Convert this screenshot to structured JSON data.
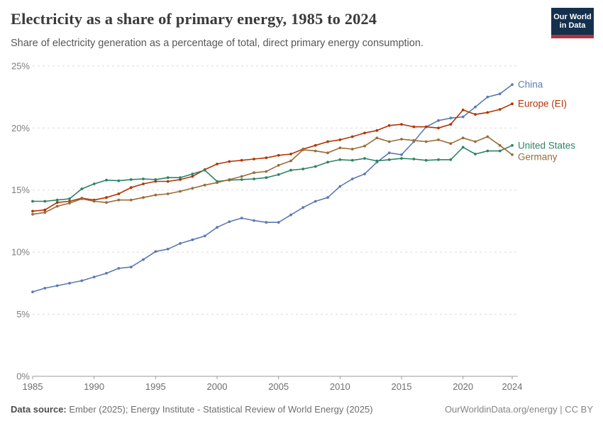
{
  "header": {
    "title": "Electricity as a share of primary energy, 1985 to 2024",
    "subtitle": "Share of electricity generation as a percentage of total, direct primary energy consumption.",
    "logo_line1": "Our World",
    "logo_line2": "in Data",
    "logo_bg_color": "#14304d",
    "logo_bar_color": "#b0333f"
  },
  "chart_data": {
    "type": "line",
    "title": "Electricity as a share of primary energy, 1985 to 2024",
    "xlabel": "",
    "ylabel": "",
    "ylim": [
      0,
      25
    ],
    "yticks": [
      0,
      5,
      10,
      15,
      20,
      25
    ],
    "ytick_suffix": "%",
    "xticks": [
      1985,
      1990,
      1995,
      2000,
      2005,
      2010,
      2015,
      2020,
      2024
    ],
    "grid": true,
    "legend_position": "end-of-line",
    "x": [
      1985,
      1986,
      1987,
      1988,
      1989,
      1990,
      1991,
      1992,
      1993,
      1994,
      1995,
      1996,
      1997,
      1998,
      1999,
      2000,
      2001,
      2002,
      2003,
      2004,
      2005,
      2006,
      2007,
      2008,
      2009,
      2010,
      2011,
      2012,
      2013,
      2014,
      2015,
      2016,
      2017,
      2018,
      2019,
      2020,
      2021,
      2022,
      2023,
      2024
    ],
    "series": [
      {
        "name": "China",
        "color": "#5b7bb4",
        "values": [
          6.8,
          7.1,
          7.3,
          7.5,
          7.7,
          8.0,
          8.3,
          8.7,
          8.8,
          9.4,
          10.05,
          10.25,
          10.7,
          11.0,
          11.3,
          12.0,
          12.45,
          12.75,
          12.55,
          12.4,
          12.4,
          13.0,
          13.6,
          14.1,
          14.4,
          15.3,
          15.9,
          16.3,
          17.25,
          18.0,
          17.85,
          18.9,
          20.1,
          20.6,
          20.8,
          20.9,
          21.7,
          22.5,
          22.75,
          23.5
        ]
      },
      {
        "name": "Europe (EI)",
        "color": "#b13507",
        "values": [
          13.3,
          13.4,
          14.0,
          14.1,
          14.35,
          14.2,
          14.4,
          14.7,
          15.2,
          15.5,
          15.7,
          15.7,
          15.85,
          16.1,
          16.65,
          17.1,
          17.3,
          17.4,
          17.5,
          17.6,
          17.8,
          17.9,
          18.3,
          18.6,
          18.9,
          19.05,
          19.3,
          19.6,
          19.8,
          20.2,
          20.3,
          20.1,
          20.1,
          20.0,
          20.3,
          21.45,
          21.1,
          21.25,
          21.5,
          21.95
        ]
      },
      {
        "name": "United States",
        "color": "#2c8465",
        "values": [
          14.1,
          14.1,
          14.2,
          14.3,
          15.1,
          15.5,
          15.8,
          15.75,
          15.85,
          15.9,
          15.85,
          16.0,
          16.0,
          16.3,
          16.6,
          15.7,
          15.8,
          15.85,
          15.9,
          16.0,
          16.25,
          16.6,
          16.7,
          16.9,
          17.25,
          17.45,
          17.4,
          17.55,
          17.35,
          17.45,
          17.55,
          17.5,
          17.4,
          17.45,
          17.45,
          18.45,
          17.9,
          18.15,
          18.15,
          18.6
        ]
      },
      {
        "name": "Germany",
        "color": "#996d39",
        "values": [
          13.05,
          13.2,
          13.7,
          13.95,
          14.3,
          14.1,
          14.0,
          14.2,
          14.2,
          14.4,
          14.6,
          14.7,
          14.9,
          15.15,
          15.4,
          15.6,
          15.85,
          16.1,
          16.4,
          16.5,
          17.0,
          17.35,
          18.25,
          18.15,
          18.0,
          18.4,
          18.3,
          18.55,
          19.2,
          18.9,
          19.1,
          19.0,
          18.9,
          19.05,
          18.75,
          19.2,
          18.9,
          19.3,
          18.6,
          17.85
        ]
      }
    ]
  },
  "footer": {
    "datasource_label": "Data source:",
    "datasource_text": " Ember (2025); Energy Institute - Statistical Review of World Energy (2025)",
    "credit": "OurWorldinData.org/energy | CC BY"
  }
}
